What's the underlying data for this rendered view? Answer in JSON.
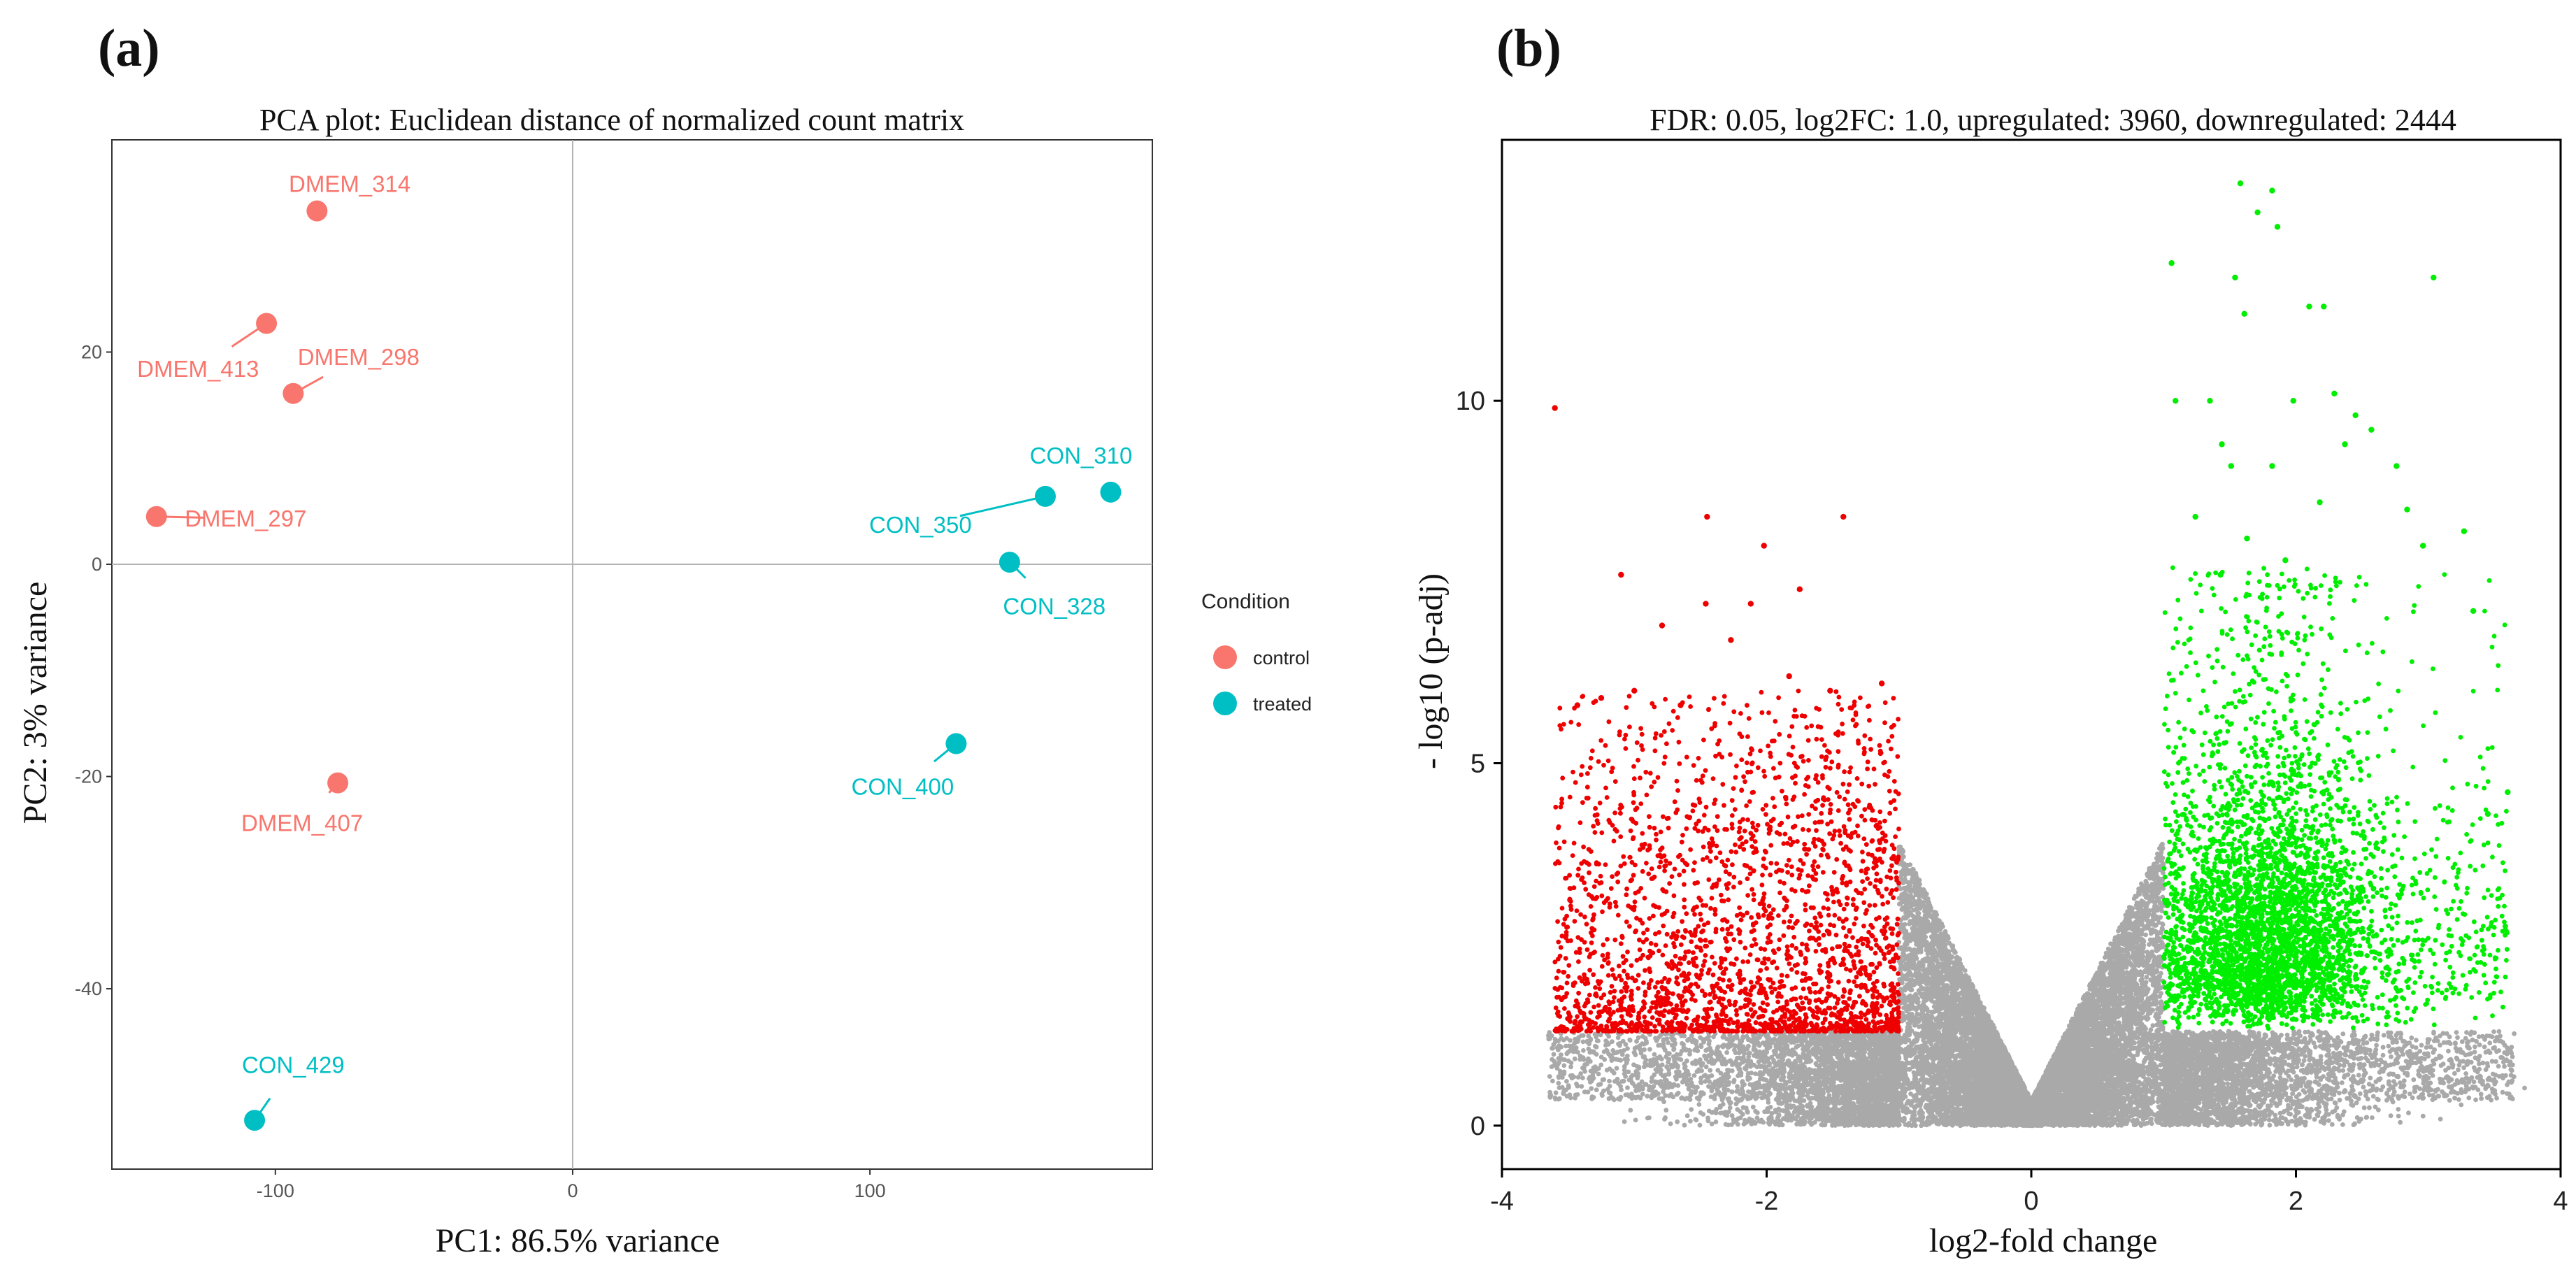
{
  "panel_a_letter": "(a)",
  "panel_b_letter": "(b)",
  "chart_data": [
    {
      "type": "scatter",
      "title": "PCA plot: Euclidean distance of normalized count matrix",
      "xlabel": "PC1: 86.5% variance",
      "ylabel": "PC2: 3% variance",
      "xlim": [
        -155,
        195
      ],
      "ylim": [
        -57,
        40
      ],
      "xticks": [
        -100,
        0,
        100
      ],
      "xtick_labels": [
        "-100",
        "0",
        "100"
      ],
      "yticks": [
        -40,
        -20,
        0,
        20
      ],
      "ytick_labels": [
        "-40",
        "-20",
        "0",
        "20"
      ],
      "zero_lines": true,
      "legend": {
        "title": "Condition",
        "placement": "right",
        "entries": [
          {
            "label": "control",
            "color": "#f8766d"
          },
          {
            "label": "treated",
            "color": "#00bfc4"
          }
        ]
      },
      "points": [
        {
          "label": "DMEM_314",
          "x": -86,
          "y": 33.3,
          "group": "control",
          "label_x": -75,
          "label_y": 35.8
        },
        {
          "label": "DMEM_413",
          "x": -103,
          "y": 22.7,
          "group": "control",
          "label_x": -126,
          "label_y": 18.4
        },
        {
          "label": "DMEM_298",
          "x": -94,
          "y": 16.1,
          "group": "control",
          "label_x": -72,
          "label_y": 19.5
        },
        {
          "label": "DMEM_297",
          "x": -140,
          "y": 4.5,
          "group": "control",
          "label_x": -110,
          "label_y": 4.3
        },
        {
          "label": "DMEM_407",
          "x": -79,
          "y": -20.6,
          "group": "control",
          "label_x": -91,
          "label_y": -24.4
        },
        {
          "label": "CON_310",
          "x": 181,
          "y": 6.8,
          "group": "treated",
          "label_x": 171,
          "label_y": 10.2
        },
        {
          "label": "CON_350",
          "x": 159,
          "y": 6.4,
          "group": "treated",
          "label_x": 117,
          "label_y": 3.7
        },
        {
          "label": "CON_328",
          "x": 147,
          "y": 0.2,
          "group": "treated",
          "label_x": 162,
          "label_y": -4.0
        },
        {
          "label": "CON_400",
          "x": 129,
          "y": -16.9,
          "group": "treated",
          "label_x": 111,
          "label_y": -21.0
        },
        {
          "label": "CON_429",
          "x": -107,
          "y": -52.4,
          "group": "treated",
          "label_x": -94,
          "label_y": -47.2
        }
      ]
    },
    {
      "type": "scatter",
      "title": "FDR: 0.05, log2FC: 1.0, upregulated: 3960, downregulated: 2444",
      "xlabel": "log2-fold change",
      "ylabel": "- log10 (p-adj)",
      "xlim": [
        -4,
        4
      ],
      "ylim": [
        -0.6,
        13.6
      ],
      "xticks": [
        -4,
        -2,
        0,
        2,
        4
      ],
      "xtick_labels": [
        "-4",
        "-2",
        "0",
        "2",
        "4"
      ],
      "yticks": [
        0,
        5,
        10
      ],
      "ytick_labels": [
        "0",
        "5",
        "10"
      ],
      "thresholds": {
        "fdr": 0.05,
        "log2fc": 1.0
      },
      "counts": {
        "upregulated": 3960,
        "downregulated": 2444
      },
      "colors": {
        "up": "#00ee00",
        "down": "#ee0000",
        "ns": "#8c8c8c"
      },
      "highlight_points": {
        "up": [
          [
            1.58,
            13.0
          ],
          [
            1.82,
            12.9
          ],
          [
            1.71,
            12.6
          ],
          [
            1.86,
            12.4
          ],
          [
            1.06,
            11.9
          ],
          [
            1.54,
            11.7
          ],
          [
            3.04,
            11.7
          ],
          [
            2.1,
            11.3
          ],
          [
            2.21,
            11.3
          ],
          [
            1.61,
            11.2
          ],
          [
            1.09,
            10.0
          ],
          [
            1.35,
            10.0
          ],
          [
            1.98,
            10.0
          ],
          [
            2.29,
            10.1
          ],
          [
            2.45,
            9.8
          ],
          [
            1.44,
            9.4
          ],
          [
            2.57,
            9.6
          ],
          [
            2.37,
            9.4
          ],
          [
            1.24,
            8.4
          ],
          [
            1.51,
            9.1
          ],
          [
            1.82,
            9.1
          ],
          [
            2.76,
            9.1
          ],
          [
            2.18,
            8.6
          ],
          [
            2.84,
            8.5
          ],
          [
            1.63,
            8.1
          ],
          [
            3.27,
            8.2
          ],
          [
            2.96,
            8.0
          ],
          [
            3.34,
            7.1
          ],
          [
            1.92,
            7.8
          ],
          [
            1.43,
            7.6
          ],
          [
            3.6,
            4.6
          ],
          [
            3.45,
            4.3
          ]
        ],
        "down": [
          [
            -3.6,
            9.9
          ],
          [
            -2.45,
            8.4
          ],
          [
            -1.42,
            8.4
          ],
          [
            -2.02,
            8.0
          ],
          [
            -3.1,
            7.6
          ],
          [
            -2.12,
            7.2
          ],
          [
            -2.46,
            7.2
          ],
          [
            -1.83,
            6.2
          ],
          [
            -1.13,
            6.1
          ],
          [
            -3.0,
            6.0
          ],
          [
            -1.52,
            6.0
          ],
          [
            -2.79,
            6.9
          ],
          [
            -3.25,
            5.9
          ],
          [
            -1.75,
            7.4
          ],
          [
            -2.65,
            5.8
          ],
          [
            -3.43,
            5.8
          ],
          [
            -2.27,
            6.7
          ]
        ]
      }
    }
  ]
}
